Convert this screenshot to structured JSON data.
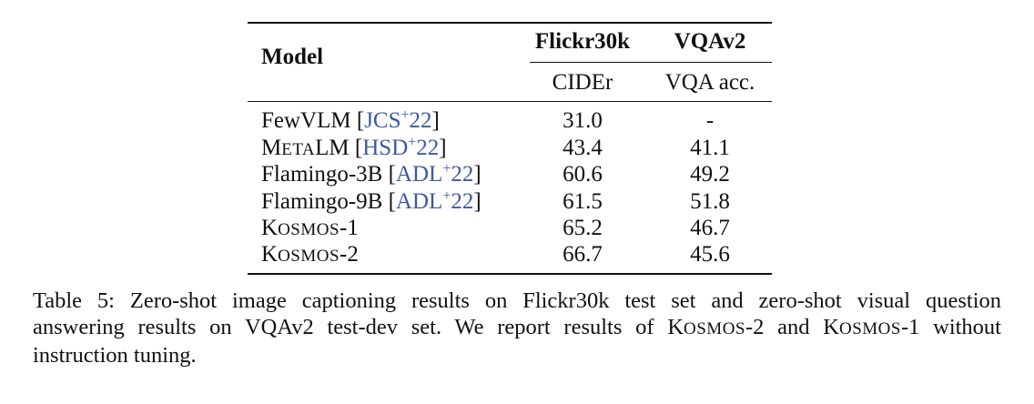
{
  "table": {
    "header": {
      "model": "Model",
      "flickr": "Flickr30k",
      "vqav2": "VQAv2",
      "cider": "CIDEr",
      "vqa_acc": "VQA acc."
    },
    "rows": [
      {
        "model": "FewVLM",
        "cite_open": "[",
        "cite": "JCS",
        "cite_sup": "+",
        "cite_year": "22",
        "cite_close": "]",
        "flickr": "31.0",
        "vqa": "-"
      },
      {
        "model_first": "M",
        "model_sc": "ETA",
        "model_rest": "LM",
        "cite_open": "[",
        "cite": "HSD",
        "cite_sup": "+",
        "cite_year": "22",
        "cite_close": "]",
        "flickr": "43.4",
        "vqa": "41.1"
      },
      {
        "model": "Flamingo-3B",
        "cite_open": "[",
        "cite": "ADL",
        "cite_sup": "+",
        "cite_year": "22",
        "cite_close": "]",
        "flickr": "60.6",
        "vqa": "49.2"
      },
      {
        "model": "Flamingo-9B",
        "cite_open": "[",
        "cite": "ADL",
        "cite_sup": "+",
        "cite_year": "22",
        "cite_close": "]",
        "flickr": "61.5",
        "vqa": "51.8"
      },
      {
        "model_first": "K",
        "model_sc": "OSMOS",
        "model_rest": "-1",
        "flickr": "65.2",
        "vqa": "46.7"
      },
      {
        "model_first": "K",
        "model_sc": "OSMOS",
        "model_rest": "-2",
        "flickr": "66.7",
        "vqa": "45.6"
      }
    ]
  },
  "caption": {
    "line1": "Table 5: Zero-shot image captioning results on Flickr30k test set and zero-shot visual question",
    "line2_a": "answering results on VQAv2 test-dev set. We report results of ",
    "k1_first": "K",
    "k1_sc": "OSMOS",
    "k1_rest": "-2 and ",
    "k2_first": "K",
    "k2_sc": "OSMOS",
    "k2_rest": "-1 without",
    "line3": "instruction tuning."
  }
}
